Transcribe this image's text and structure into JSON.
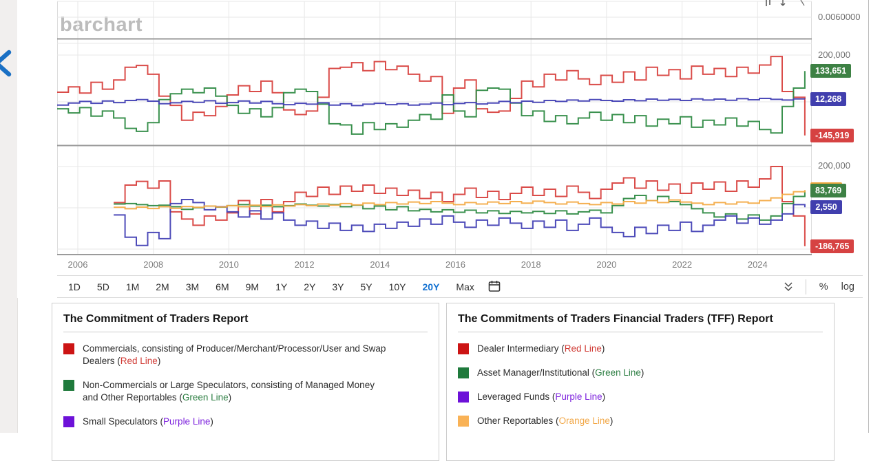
{
  "watermark": "barchart",
  "mini_panel": {
    "axis_label": "0.0060000"
  },
  "toolbar": {
    "ranges": [
      "1D",
      "5D",
      "1M",
      "2M",
      "3M",
      "6M",
      "9M",
      "1Y",
      "2Y",
      "3Y",
      "5Y",
      "10Y",
      "20Y",
      "Max"
    ],
    "active_range": "20Y",
    "percent_label": "%",
    "log_label": "log",
    "icons": [
      "calendar-icon",
      "collapse-chevrons-icon"
    ]
  },
  "chart_data": [
    {
      "type": "step-line",
      "panel": "commitment-of-traders-net-positions",
      "unit": "contracts (series values in thousands)",
      "x_start": 2005.45,
      "x_step": 0.3,
      "x_ticks": [
        2006,
        2008,
        2010,
        2012,
        2014,
        2016,
        2018,
        2020,
        2022,
        2024
      ],
      "ylim": [
        -188,
        254
      ],
      "grid": true,
      "axis_label": "200,000",
      "axis_label_value": 200,
      "series": [
        {
          "name": "Commercials",
          "line": "red",
          "color": "#d8423f",
          "values": [
            42,
            65,
            38,
            85,
            55,
            95,
            150,
            158,
            120,
            25,
            -15,
            -80,
            -45,
            -60,
            -20,
            30,
            70,
            45,
            90,
            40,
            -35,
            -55,
            -40,
            20,
            145,
            150,
            170,
            135,
            175,
            140,
            155,
            120,
            90,
            110,
            -50,
            60,
            95,
            -30,
            -45,
            -40,
            15,
            90,
            65,
            120,
            95,
            135,
            100,
            75,
            115,
            85,
            130,
            95,
            150,
            115,
            140,
            100,
            155,
            120,
            145,
            110,
            150,
            125,
            160,
            197,
            45,
            20,
            -145.919
          ]
        },
        {
          "name": "Non-Commercials / Large Speculators",
          "line": "green",
          "color": "#2f8b45",
          "values": [
            -30,
            -48,
            -25,
            -62,
            -40,
            -70,
            -115,
            -128,
            -90,
            10,
            35,
            55,
            40,
            60,
            25,
            -15,
            -50,
            -30,
            -65,
            -25,
            40,
            55,
            45,
            -10,
            -95,
            -100,
            -140,
            -90,
            -120,
            -95,
            -110,
            -80,
            -55,
            -75,
            30,
            -40,
            -65,
            50,
            60,
            55,
            -5,
            -60,
            -40,
            -85,
            -60,
            -95,
            -70,
            -45,
            -80,
            -55,
            -90,
            -60,
            -105,
            -75,
            -95,
            -65,
            -110,
            -80,
            -100,
            -70,
            -105,
            -85,
            -120,
            -135,
            -20,
            60,
            133.651
          ]
        },
        {
          "name": "Small Speculators",
          "line": "purple",
          "color": "#4341b5",
          "values": [
            -14,
            -5,
            2,
            -6,
            4,
            -3,
            6,
            10,
            3,
            -8,
            -4,
            2,
            -2,
            5,
            -6,
            -3,
            4,
            -5,
            2,
            -8,
            -12,
            -6,
            -10,
            -4,
            -14,
            -8,
            -16,
            -10,
            -6,
            -12,
            -8,
            -14,
            -10,
            -5,
            -12,
            -7,
            -3,
            -9,
            -5,
            2,
            -4,
            3,
            -2,
            6,
            2,
            8,
            4,
            10,
            6,
            3,
            9,
            5,
            12,
            7,
            11,
            6,
            13,
            8,
            12,
            7,
            14,
            9,
            15,
            11,
            8,
            13,
            12.268
          ]
        }
      ],
      "badges": [
        {
          "label": "133,651",
          "value": 133.651,
          "color": "#3d8144"
        },
        {
          "label": "12,268",
          "value": 12.268,
          "color": "#413fae"
        },
        {
          "label": "-145,919",
          "value": -145.919,
          "color": "#d64242"
        }
      ]
    },
    {
      "type": "step-line",
      "panel": "tff-report-net-positions",
      "unit": "contracts (series values in thousands)",
      "x_start": 2005.45,
      "x_step": 0.3,
      "x_ticks": [
        2006,
        2008,
        2010,
        2012,
        2014,
        2016,
        2018,
        2020,
        2022,
        2024
      ],
      "ylim": [
        -227,
        280
      ],
      "grid": true,
      "axis_label": "200,000",
      "axis_label_value": 200,
      "series": [
        {
          "name": "Dealer Intermediary",
          "line": "red",
          "color": "#d8423f",
          "values": [
            null,
            null,
            null,
            null,
            null,
            25,
            110,
            128,
            95,
            130,
            -20,
            -55,
            -85,
            -40,
            -60,
            -25,
            35,
            -30,
            40,
            -20,
            30,
            75,
            55,
            100,
            65,
            105,
            80,
            110,
            70,
            95,
            60,
            85,
            45,
            75,
            30,
            65,
            95,
            50,
            80,
            40,
            70,
            100,
            60,
            90,
            55,
            105,
            75,
            45,
            90,
            120,
            145,
            95,
            130,
            85,
            115,
            70,
            120,
            90,
            125,
            80,
            130,
            100,
            140,
            200,
            30,
            -40,
            -186.765
          ]
        },
        {
          "name": "Asset Manager/Institutional",
          "line": "green",
          "color": "#2f8b45",
          "values": [
            null,
            null,
            null,
            null,
            null,
            18,
            20,
            15,
            10,
            12,
            5,
            -8,
            0,
            8,
            3,
            10,
            15,
            8,
            12,
            5,
            10,
            18,
            12,
            8,
            15,
            5,
            12,
            -5,
            8,
            -10,
            5,
            -15,
            -8,
            -20,
            -10,
            -22,
            -12,
            -25,
            -15,
            -28,
            -18,
            -25,
            -18,
            -28,
            -15,
            -30,
            -20,
            -12,
            -25,
            10,
            45,
            60,
            35,
            55,
            30,
            15,
            -5,
            -25,
            -45,
            -30,
            -55,
            -35,
            -60,
            -40,
            20,
            55,
            83.769
          ]
        },
        {
          "name": "Leveraged Funds",
          "line": "purple",
          "color": "#4341b5",
          "values": [
            null,
            null,
            null,
            null,
            null,
            -35,
            -143,
            -183,
            -120,
            -150,
            20,
            40,
            25,
            -10,
            5,
            -20,
            -45,
            -15,
            -55,
            -25,
            -60,
            -85,
            -65,
            -100,
            -75,
            -110,
            -85,
            -115,
            -80,
            -100,
            -70,
            -90,
            -55,
            -80,
            -40,
            -70,
            -95,
            -60,
            -85,
            -50,
            -75,
            -100,
            -65,
            -95,
            -60,
            -110,
            -80,
            -50,
            -95,
            -120,
            -140,
            -95,
            -125,
            -85,
            -110,
            -70,
            -115,
            -85,
            -60,
            -40,
            -75,
            -50,
            -80,
            -60,
            -30,
            15,
            2.55
          ]
        },
        {
          "name": "Other Reportables",
          "line": "orange",
          "color": "#f3ab47",
          "values": [
            null,
            null,
            null,
            null,
            null,
            2,
            -5,
            3,
            -4,
            5,
            -3,
            6,
            2,
            8,
            4,
            10,
            5,
            12,
            6,
            14,
            8,
            15,
            10,
            18,
            12,
            20,
            14,
            22,
            15,
            25,
            18,
            28,
            20,
            30,
            22,
            15,
            25,
            18,
            28,
            20,
            30,
            22,
            32,
            25,
            18,
            28,
            20,
            15,
            25,
            18,
            30,
            22,
            35,
            25,
            38,
            28,
            22,
            15,
            25,
            18,
            28,
            22,
            35,
            48,
            65,
            78,
            86
          ]
        }
      ],
      "badges": [
        {
          "label": "",
          "value": 90,
          "color": "#efa93f"
        },
        {
          "label": "83,769",
          "value": 83.769,
          "color": "#3d8144"
        },
        {
          "label": "2,550",
          "value": 2.55,
          "color": "#413fae"
        },
        {
          "label": "-186,765",
          "value": -186.765,
          "color": "#d64242"
        }
      ]
    }
  ],
  "cards": [
    {
      "title": "The Commitment of Traders Report",
      "items": [
        {
          "swatch": "#cc1414",
          "text_before": "Commercials, consisting of Producer/Merchant/Processor/User and Swap Dealers (",
          "line_label": "Red Line",
          "line_color": "#d03a34",
          "text_after": ")"
        },
        {
          "swatch": "#1f7a3c",
          "text_before": "Non-Commercials or Large Speculators, consisting of Managed Money and Other Reportables (",
          "line_label": "Green Line",
          "line_color": "#2c7e42",
          "text_after": ")"
        },
        {
          "swatch": "#6d11d8",
          "text_before": "Small Speculators (",
          "line_label": "Purple Line",
          "line_color": "#7d22dd",
          "text_after": ")"
        }
      ]
    },
    {
      "title": "The Commitments of Traders Financial Traders (TFF) Report",
      "items": [
        {
          "swatch": "#cc1414",
          "text_before": "Dealer Intermediary (",
          "line_label": "Red Line",
          "line_color": "#d03a34",
          "text_after": ")"
        },
        {
          "swatch": "#1f7a3c",
          "text_before": "Asset Manager/Institutional (",
          "line_label": "Green Line",
          "line_color": "#2c7e42",
          "text_after": ")"
        },
        {
          "swatch": "#6d11d8",
          "text_before": "Leveraged Funds (",
          "line_label": "Purple Line",
          "line_color": "#7d22dd",
          "text_after": ")"
        },
        {
          "swatch": "#f9b256",
          "text_before": "Other Reportables (",
          "line_label": "Orange Line",
          "line_color": "#f2a848",
          "text_after": ")"
        }
      ]
    }
  ]
}
